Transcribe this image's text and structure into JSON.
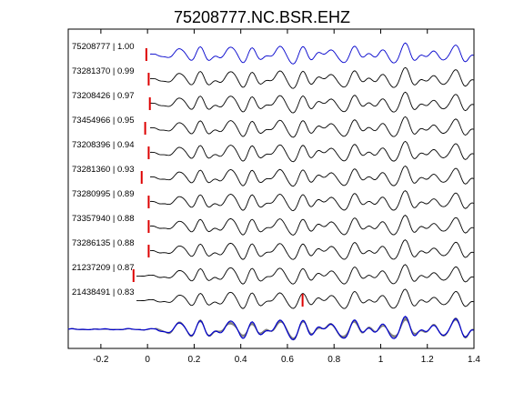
{
  "chart_data": {
    "type": "line",
    "title": "75208777.NC.BSR.EHZ",
    "xlabel": "",
    "ylabel": "",
    "xlim": [
      -0.34,
      1.4
    ],
    "xticks": [
      -0.2,
      0,
      0.2,
      0.4,
      0.6,
      0.8,
      1,
      1.2,
      1.4
    ],
    "xtick_labels": [
      "-0.2",
      "0",
      "0.2",
      "0.4",
      "0.6",
      "0.8",
      "1",
      "1.2",
      "1.4"
    ],
    "grid": false,
    "colors": {
      "reference": "#0000cc",
      "trace": "#000000",
      "pick": "#dd0000",
      "overlay": "#808080"
    },
    "traces": [
      {
        "name": "75208777 | 1.00",
        "pick": -0.005,
        "ref": true
      },
      {
        "name": "73281370 | 0.99",
        "pick": 0.005
      },
      {
        "name": "73208426 | 0.97",
        "pick": 0.01
      },
      {
        "name": "73454966 | 0.95",
        "pick": -0.01
      },
      {
        "name": "73208396 | 0.94",
        "pick": 0.005
      },
      {
        "name": "73281360 | 0.93",
        "pick": -0.025
      },
      {
        "name": "73280995 | 0.89",
        "pick": 0.005
      },
      {
        "name": "73357940 | 0.88",
        "pick": 0.005
      },
      {
        "name": "73286135 | 0.88",
        "pick": 0.005
      },
      {
        "name": "21237209 | 0.87",
        "pick": -0.06
      },
      {
        "name": "21438491 | 0.83",
        "pick": 0.665
      }
    ]
  }
}
